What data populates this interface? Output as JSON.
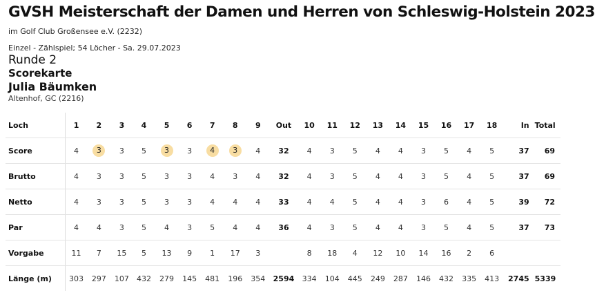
{
  "header": {
    "title": "GVSH Meisterschaft der Damen und Herren von Schleswig-Holstein 2023",
    "venue": "im Golf Club Großensee e.V. (2232)",
    "meta": "Einzel - Zählspiel; 54 Löcher - Sa. 29.07.2023",
    "round": "Runde 2",
    "card_label": "Scorekarte",
    "player": "Julia Bäumken",
    "club": "Altenhof, GC (2216)"
  },
  "colors": {
    "highlight": "#f8dda2"
  },
  "scorecard": {
    "header": {
      "label": "Loch",
      "holes": [
        "1",
        "2",
        "3",
        "4",
        "5",
        "6",
        "7",
        "8",
        "9",
        "Out",
        "10",
        "11",
        "12",
        "13",
        "14",
        "15",
        "16",
        "17",
        "18",
        "In",
        "Total"
      ]
    },
    "rows": [
      {
        "label": "Score",
        "cells": [
          "4",
          "3",
          "3",
          "5",
          "3",
          "3",
          "4",
          "3",
          "4",
          "32",
          "4",
          "3",
          "5",
          "4",
          "4",
          "3",
          "5",
          "4",
          "5",
          "37",
          "69"
        ],
        "highlighted_holes": [
          2,
          5,
          7,
          8
        ]
      },
      {
        "label": "Brutto",
        "cells": [
          "4",
          "3",
          "3",
          "5",
          "3",
          "3",
          "4",
          "3",
          "4",
          "32",
          "4",
          "3",
          "5",
          "4",
          "4",
          "3",
          "5",
          "4",
          "5",
          "37",
          "69"
        ]
      },
      {
        "label": "Netto",
        "cells": [
          "4",
          "3",
          "3",
          "5",
          "3",
          "3",
          "4",
          "4",
          "4",
          "33",
          "4",
          "4",
          "5",
          "4",
          "4",
          "3",
          "6",
          "4",
          "5",
          "39",
          "72"
        ]
      },
      {
        "label": "Par",
        "cells": [
          "4",
          "4",
          "3",
          "5",
          "4",
          "3",
          "5",
          "4",
          "4",
          "36",
          "4",
          "3",
          "5",
          "4",
          "4",
          "3",
          "5",
          "4",
          "5",
          "37",
          "73"
        ]
      },
      {
        "label": "Vorgabe",
        "cells": [
          "11",
          "7",
          "15",
          "5",
          "13",
          "9",
          "1",
          "17",
          "3",
          "",
          "8",
          "18",
          "4",
          "12",
          "10",
          "14",
          "16",
          "2",
          "6",
          "",
          ""
        ]
      },
      {
        "label": "Länge (m)",
        "cells": [
          "303",
          "297",
          "107",
          "432",
          "279",
          "145",
          "481",
          "196",
          "354",
          "2594",
          "334",
          "104",
          "445",
          "249",
          "287",
          "146",
          "432",
          "335",
          "413",
          "2745",
          "5339"
        ]
      }
    ]
  }
}
